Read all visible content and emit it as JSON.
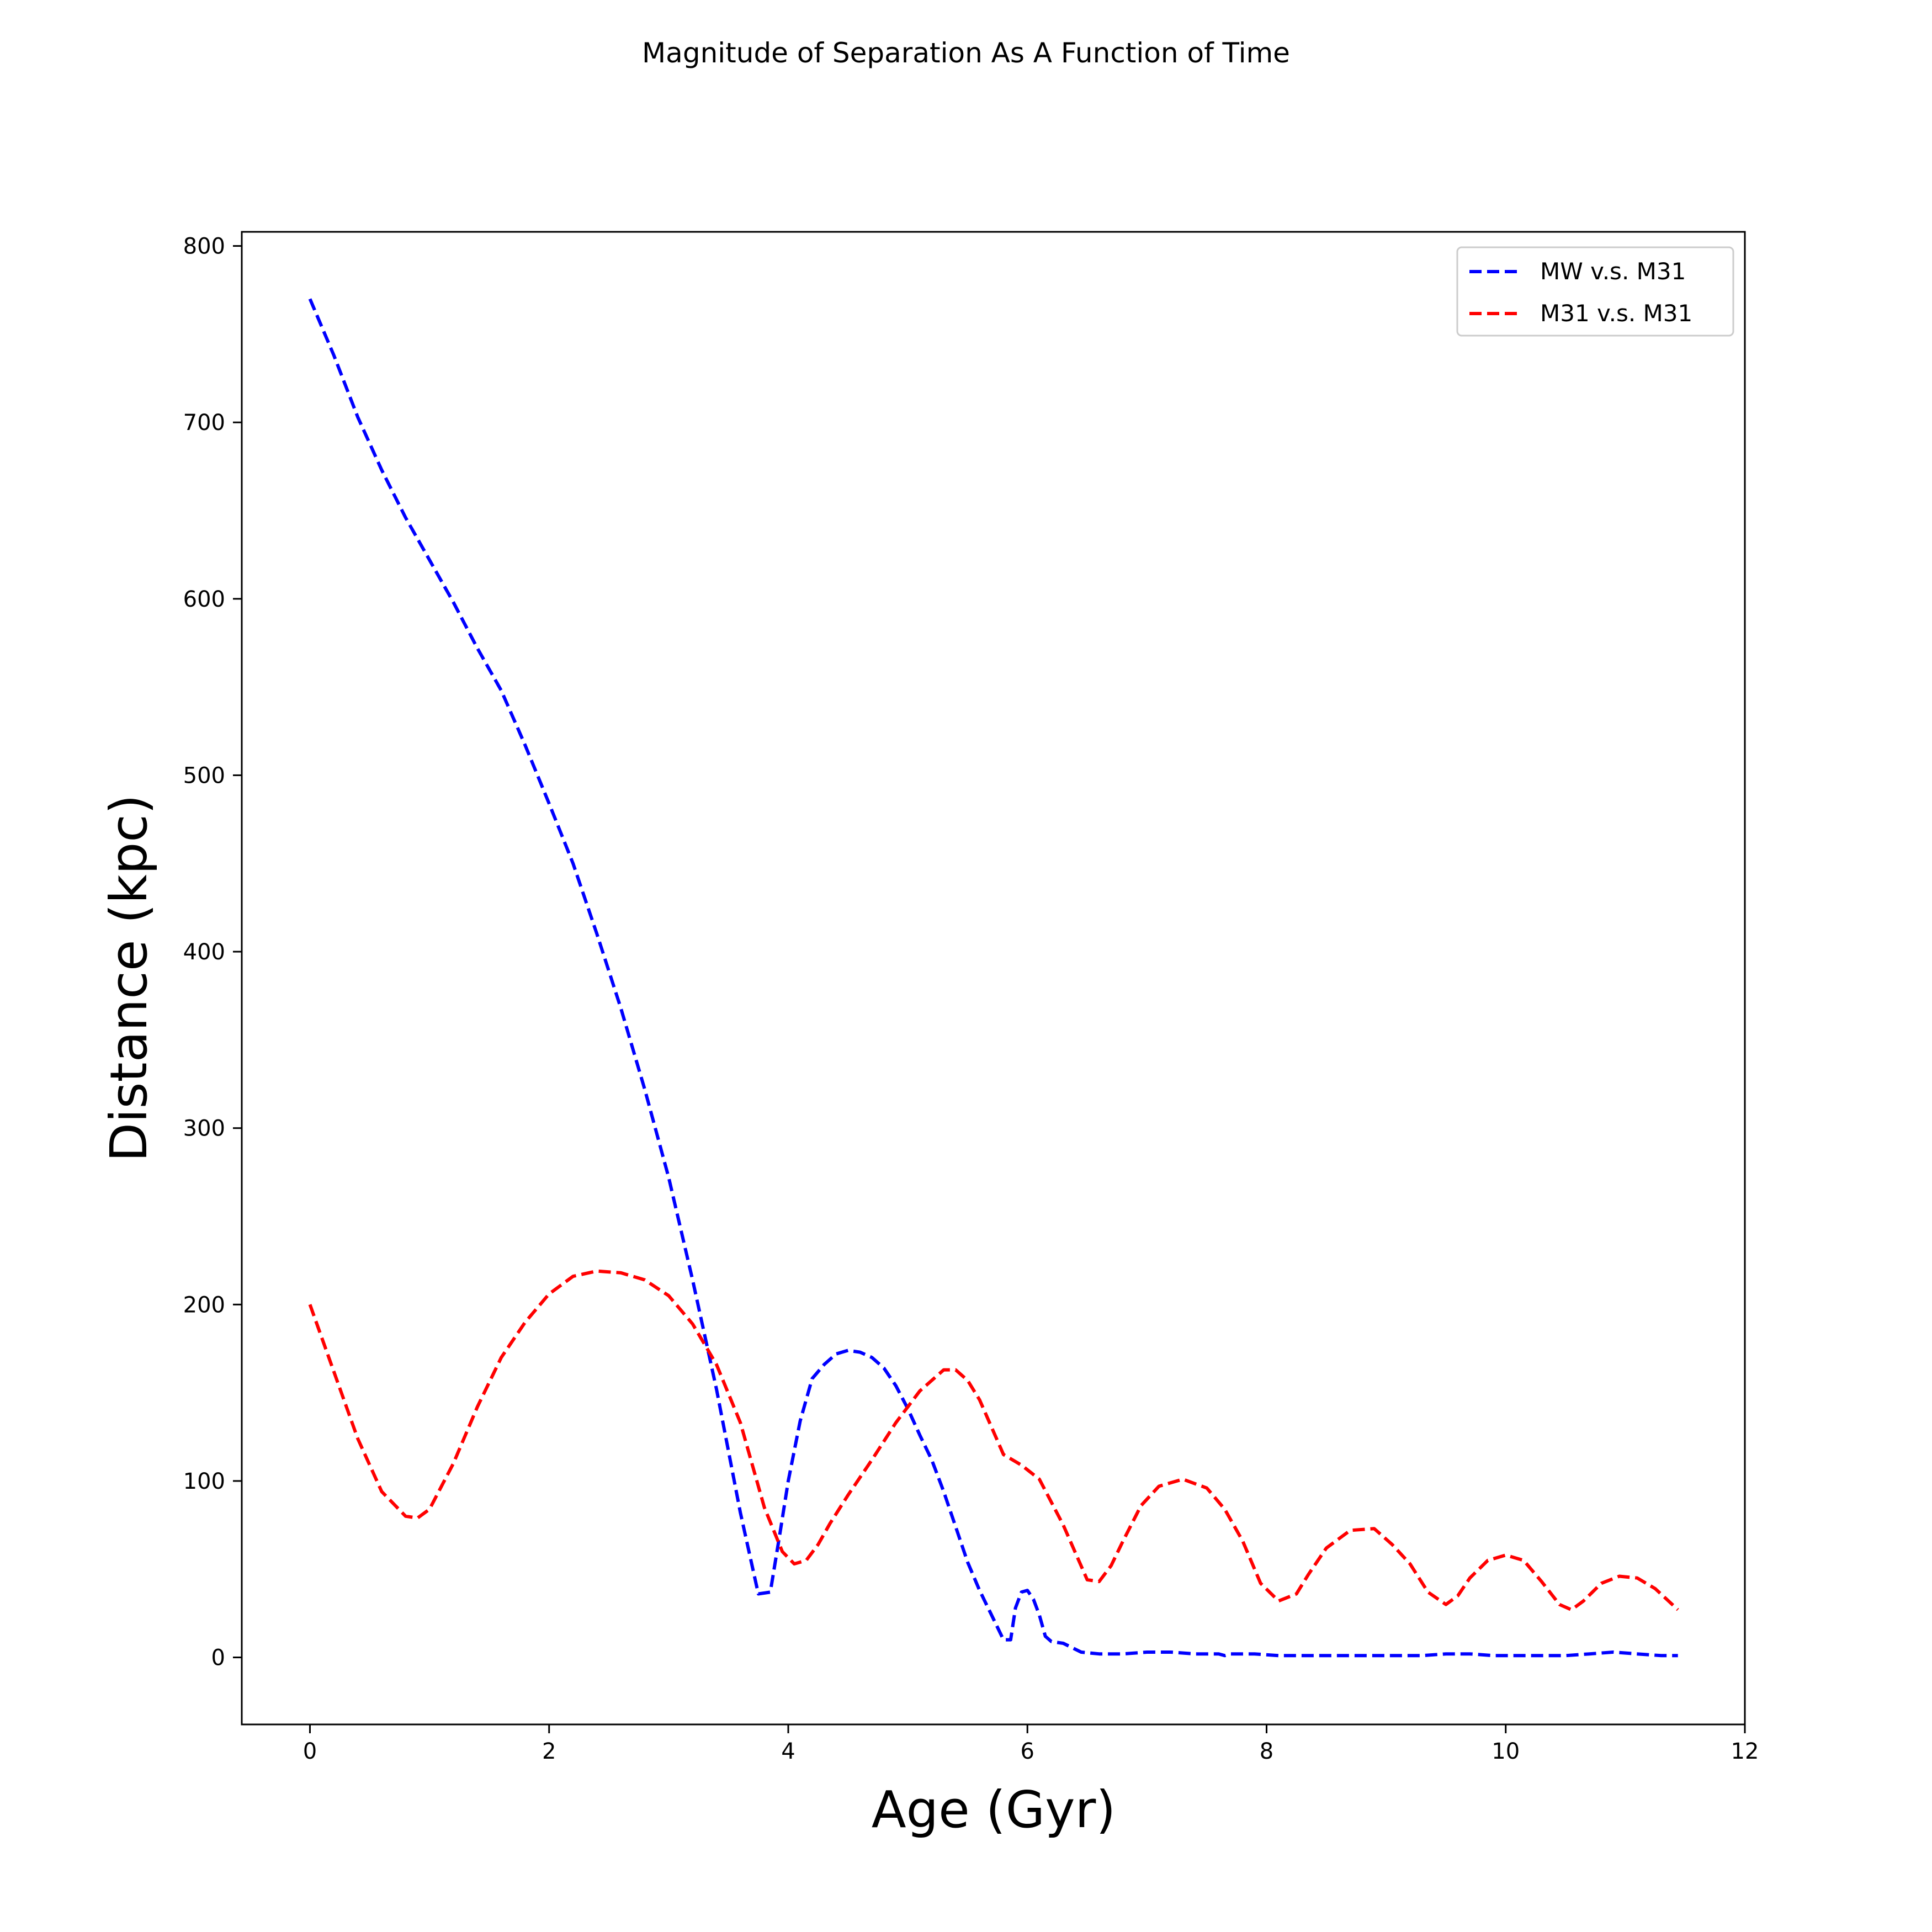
{
  "chart_data": {
    "type": "line",
    "title": "Magnitude of Separation As A Function of Time",
    "xlabel": "Age (Gyr)",
    "ylabel": "Distance (kpc)",
    "xlim": [
      -0.57,
      12.0
    ],
    "ylim": [
      -38,
      808
    ],
    "xticks": [
      0,
      2,
      4,
      6,
      8,
      10,
      12
    ],
    "yticks": [
      0,
      100,
      200,
      300,
      400,
      500,
      600,
      700,
      800
    ],
    "grid": false,
    "legend_position": "top-right",
    "series": [
      {
        "name": "MW v.s. M31",
        "color": "#0000ff",
        "linestyle": "dashed",
        "x": [
          0,
          0.2,
          0.4,
          0.6,
          0.8,
          1.0,
          1.2,
          1.4,
          1.6,
          1.8,
          2.0,
          2.2,
          2.4,
          2.6,
          2.8,
          3.0,
          3.2,
          3.4,
          3.6,
          3.75,
          3.85,
          3.93,
          4.0,
          4.1,
          4.2,
          4.3,
          4.4,
          4.5,
          4.6,
          4.7,
          4.8,
          4.9,
          5.0,
          5.1,
          5.2,
          5.3,
          5.4,
          5.5,
          5.6,
          5.7,
          5.8,
          5.86,
          5.9,
          5.95,
          6.0,
          6.05,
          6.1,
          6.15,
          6.2,
          6.3,
          6.45,
          6.6,
          6.8,
          7.0,
          7.2,
          7.4,
          7.6,
          7.65,
          7.7,
          7.9,
          8.1,
          8.3,
          8.5,
          8.7,
          8.9,
          9.1,
          9.3,
          9.5,
          9.7,
          9.9,
          10.1,
          10.3,
          10.5,
          10.7,
          10.9,
          11.1,
          11.3,
          11.44
        ],
        "y": [
          770,
          738,
          703,
          673,
          646,
          622,
          598,
          572,
          548,
          517,
          484,
          450,
          410,
          368,
          322,
          272,
          214,
          152,
          82,
          36,
          37,
          70,
          100,
          134,
          158,
          166,
          172,
          174,
          173,
          170,
          164,
          154,
          141,
          126,
          112,
          94,
          74,
          54,
          38,
          24,
          10,
          10,
          28,
          37,
          38,
          33,
          24,
          12,
          9,
          8,
          3,
          2,
          2,
          3,
          3,
          2,
          2,
          1,
          2,
          2,
          1,
          1,
          1,
          1,
          1,
          1,
          1,
          2,
          2,
          1,
          1,
          1,
          1,
          2,
          3,
          2,
          1,
          1
        ]
      },
      {
        "name": "M31 v.s. M31",
        "color": "#ff0000",
        "linestyle": "dashed",
        "x": [
          0,
          0.2,
          0.4,
          0.6,
          0.8,
          0.9,
          1.0,
          1.2,
          1.4,
          1.6,
          1.8,
          2.0,
          2.2,
          2.4,
          2.6,
          2.8,
          3.0,
          3.2,
          3.4,
          3.6,
          3.8,
          3.95,
          4.05,
          4.15,
          4.25,
          4.35,
          4.5,
          4.7,
          4.9,
          5.1,
          5.3,
          5.4,
          5.5,
          5.6,
          5.8,
          5.95,
          6.1,
          6.3,
          6.5,
          6.6,
          6.7,
          6.8,
          6.95,
          7.1,
          7.3,
          7.5,
          7.65,
          7.8,
          7.95,
          8.1,
          8.25,
          8.35,
          8.5,
          8.7,
          8.9,
          9.05,
          9.2,
          9.35,
          9.5,
          9.6,
          9.7,
          9.85,
          10.0,
          10.15,
          10.3,
          10.45,
          10.55,
          10.65,
          10.8,
          10.95,
          11.1,
          11.25,
          11.44
        ],
        "y": [
          200,
          162,
          124,
          94,
          80,
          79,
          84,
          110,
          142,
          170,
          190,
          206,
          216,
          219,
          218,
          214,
          205,
          189,
          166,
          133,
          85,
          60,
          53,
          55,
          64,
          76,
          92,
          112,
          133,
          151,
          163,
          163,
          157,
          146,
          115,
          109,
          101,
          75,
          44,
          43,
          52,
          66,
          86,
          97,
          101,
          96,
          84,
          66,
          42,
          32,
          36,
          47,
          62,
          72,
          73,
          64,
          53,
          37,
          30,
          35,
          45,
          55,
          58,
          55,
          43,
          30,
          27,
          32,
          42,
          46,
          45,
          39,
          27
        ]
      }
    ]
  }
}
